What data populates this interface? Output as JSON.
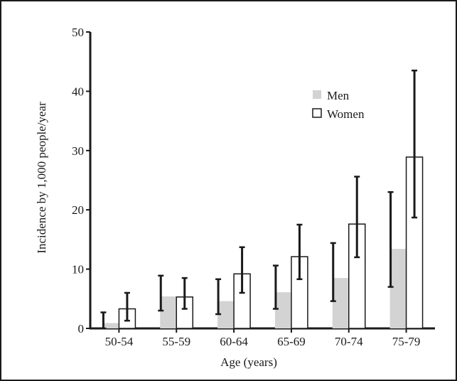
{
  "chart_data": {
    "type": "bar",
    "title": "",
    "xlabel": "Age (years)",
    "ylabel": "Incidence by 1,000 people/year",
    "ylim": [
      0,
      50
    ],
    "yticks": [
      "0",
      "10",
      "20",
      "30",
      "40",
      "50"
    ],
    "categories": [
      "50-54",
      "55-59",
      "60-64",
      "65-69",
      "70-74",
      "75-79"
    ],
    "series": [
      {
        "name": "Men",
        "color": "#d3d3d3",
        "values": [
          0.9,
          5.4,
          4.6,
          6.1,
          8.5,
          13.4
        ],
        "error_low": [
          0.0,
          3.0,
          2.4,
          3.3,
          4.6,
          7.0
        ],
        "error_high": [
          2.7,
          8.9,
          8.3,
          10.6,
          14.4,
          23.0
        ]
      },
      {
        "name": "Women",
        "color": "#ffffff",
        "values": [
          3.3,
          5.3,
          9.2,
          12.1,
          17.6,
          28.9
        ],
        "error_low": [
          1.3,
          3.3,
          6.0,
          8.3,
          12.0,
          18.7
        ],
        "error_high": [
          6.0,
          8.5,
          13.7,
          17.5,
          25.6,
          43.5
        ]
      }
    ],
    "legend_position": "top-right",
    "grid": false
  }
}
